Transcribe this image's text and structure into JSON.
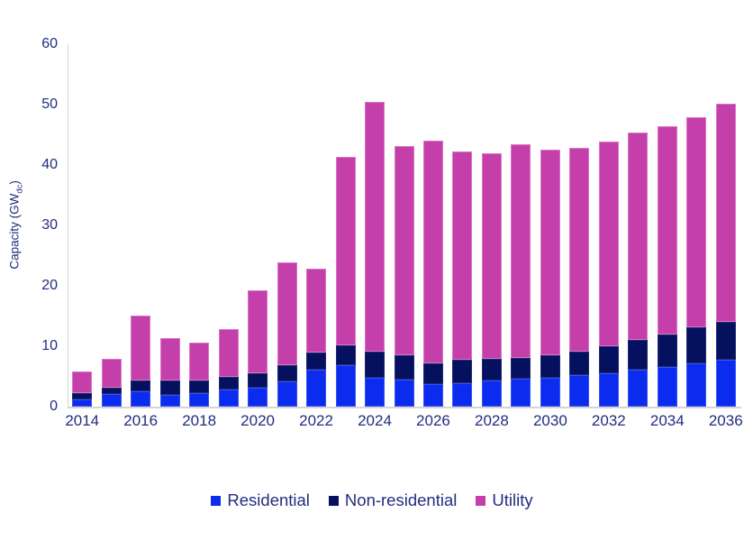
{
  "chart_data": {
    "type": "bar",
    "stacked": true,
    "title": "",
    "xlabel": "",
    "ylabel_parts": [
      "Capacity (GW",
      "dc",
      ")"
    ],
    "ylim": [
      0,
      60
    ],
    "yticks": [
      0,
      10,
      20,
      30,
      40,
      50,
      60
    ],
    "grid": false,
    "legend_position": "bottom",
    "categories": [
      "2014",
      "2015",
      "2016",
      "2017",
      "2018",
      "2019",
      "2020",
      "2021",
      "2022",
      "2023",
      "2024",
      "2025",
      "2026",
      "2027",
      "2028",
      "2029",
      "2030",
      "2031",
      "2032",
      "2033",
      "2034",
      "2035",
      "2036"
    ],
    "xtick_labels": [
      "2014",
      "2016",
      "2018",
      "2020",
      "2022",
      "2024",
      "2026",
      "2028",
      "2030",
      "2032",
      "2034",
      "2036"
    ],
    "series": [
      {
        "name": "Residential",
        "color": "#0b2bee",
        "border_color": "#3a52f2",
        "values": [
          1.2,
          2.1,
          2.5,
          2.0,
          2.2,
          2.9,
          3.2,
          4.2,
          6.1,
          6.8,
          4.8,
          4.5,
          3.7,
          3.9,
          4.3,
          4.6,
          4.8,
          5.2,
          5.5,
          6.1,
          6.6,
          7.1,
          7.7
        ]
      },
      {
        "name": "Non-residential",
        "color": "#05105e",
        "border_color": "#1e2b74",
        "values": [
          1.0,
          1.0,
          1.8,
          2.4,
          2.2,
          2.1,
          2.3,
          2.7,
          2.8,
          3.4,
          4.3,
          4.0,
          3.5,
          3.8,
          3.6,
          3.5,
          3.7,
          3.9,
          4.5,
          4.9,
          5.4,
          6.0,
          6.3
        ]
      },
      {
        "name": "Utility",
        "color": "#c43fa9",
        "border_color": "#d976c6",
        "values": [
          3.7,
          4.8,
          10.8,
          6.9,
          6.2,
          7.9,
          13.8,
          17.0,
          13.9,
          31.1,
          41.3,
          34.7,
          36.9,
          34.5,
          34.1,
          35.3,
          34.0,
          33.7,
          33.9,
          34.4,
          34.4,
          34.8,
          36.1
        ]
      }
    ]
  },
  "axis_style": {
    "text_color": "#232d7e",
    "line_color": "#d5d5d5"
  }
}
